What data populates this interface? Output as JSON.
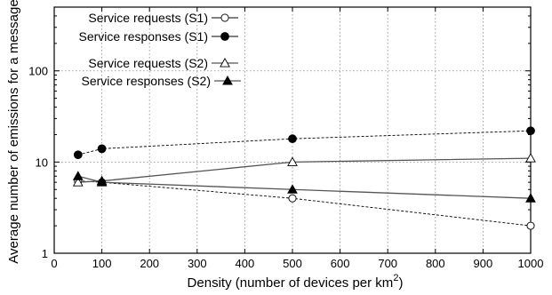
{
  "chart_data": {
    "type": "line",
    "xlabel": "Density (number of devices per km",
    "xlabel_sup": "2",
    "xlabel_close": ")",
    "ylabel": "Average number of emissions for a message",
    "xlim": [
      0,
      1000
    ],
    "ylim": [
      1,
      500
    ],
    "yscale": "log",
    "grid": true,
    "legend_position": "top-left",
    "xticks": [
      0,
      100,
      200,
      300,
      400,
      500,
      600,
      700,
      800,
      900,
      1000
    ],
    "xtick_labels": [
      "0",
      "100",
      "200",
      "300",
      "400",
      "500",
      "600",
      "700",
      "800",
      "900",
      "1000"
    ],
    "yticks": [
      1,
      10,
      100
    ],
    "ytick_labels": [
      "1",
      "10",
      "100"
    ],
    "series": [
      {
        "name": "Service requests (S1)",
        "marker": "circle-open",
        "line": "dashed",
        "x": [
          50,
          100,
          500,
          1000
        ],
        "y": [
          6.2,
          6.0,
          4.0,
          2.0
        ]
      },
      {
        "name": "Service responses (S1)",
        "marker": "circle-filled",
        "line": "dashed",
        "x": [
          50,
          100,
          500,
          1000
        ],
        "y": [
          12.0,
          14.0,
          18.0,
          22.0
        ]
      },
      {
        "name": "Service requests (S2)",
        "marker": "triangle-open",
        "line": "solid",
        "x": [
          50,
          100,
          500,
          1000
        ],
        "y": [
          6.0,
          6.2,
          10.0,
          11.0
        ]
      },
      {
        "name": "Service responses (S2)",
        "marker": "triangle-filled",
        "line": "solid",
        "x": [
          50,
          100,
          500,
          1000
        ],
        "y": [
          7.0,
          6.0,
          5.0,
          4.0
        ]
      }
    ]
  }
}
